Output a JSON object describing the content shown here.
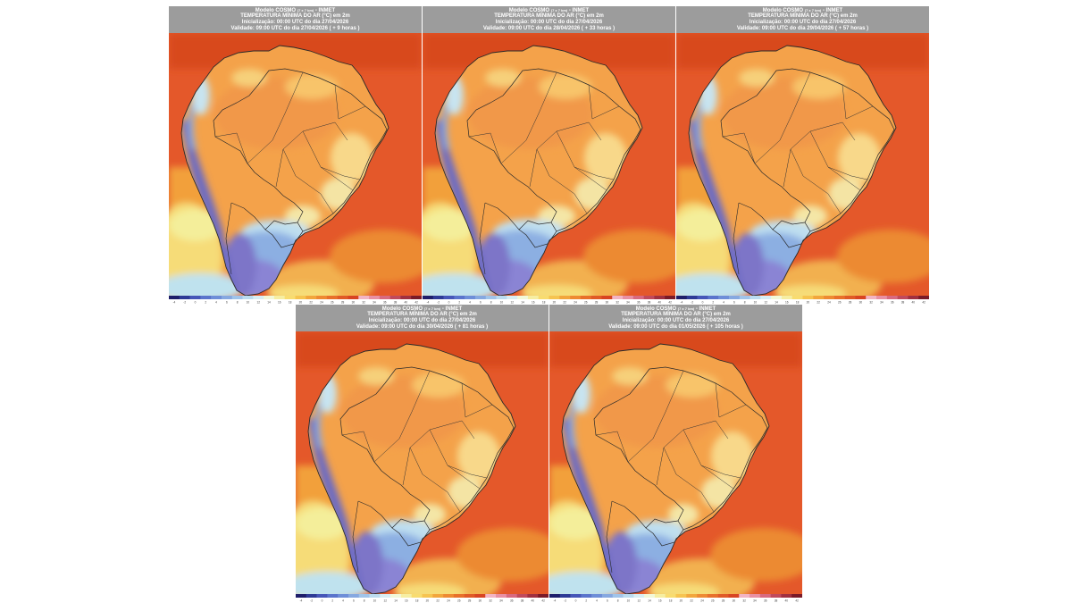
{
  "colorbar": {
    "colors": [
      "#1e1e6a",
      "#2e3a96",
      "#4656b8",
      "#5a74cc",
      "#6e8ed8",
      "#86a8e0",
      "#a0c4ea",
      "#bcdcf0",
      "#d8eef4",
      "#f2f8d8",
      "#f6eea2",
      "#f8dc70",
      "#f6c450",
      "#f2a63c",
      "#ee8a32",
      "#e8702a",
      "#e05a26",
      "#d84422",
      "#f2b4c4",
      "#e890a4",
      "#d86a80",
      "#c04a5c",
      "#a03040",
      "#7a1a28"
    ],
    "ticks": [
      "-4",
      "-2",
      "0",
      "2",
      "4",
      "6",
      "8",
      "10",
      "12",
      "14",
      "16",
      "18",
      "20",
      "22",
      "24",
      "26",
      "28",
      "30",
      "32",
      "34",
      "36",
      "38",
      "40",
      "42"
    ]
  },
  "panels": [
    {
      "title": "Modelo COSMO",
      "title_small": "(7 x 7 km)",
      "title_suffix": "- INMET",
      "variable": "TEMPERATURA MÍNIMA DO AR (°C) em 2m",
      "init": "Inicialização: 00:00 UTC do dia 27/04/2026",
      "valid": "Validade: 09:00 UTC do dia 27/04/2026 ( + 9 horas )",
      "coldness": 1.0
    },
    {
      "title": "Modelo COSMO",
      "title_small": "(7 x 7 km)",
      "title_suffix": "- INMET",
      "variable": "TEMPERATURA MÍNIMA DO AR (°C) em 2m",
      "init": "Inicialização: 00:00 UTC do dia 27/04/2026",
      "valid": "Validade: 09:00 UTC do dia 28/04/2026 ( + 33 horas )",
      "coldness": 1.05
    },
    {
      "title": "Modelo COSMO",
      "title_small": "(7 x 7 km)",
      "title_suffix": "- INMET",
      "variable": "TEMPERATURA MÍNIMA DO AR (°C) em 2m",
      "init": "Inicialização: 00:00 UTC do dia 27/04/2026",
      "valid": "Validade: 09:00 UTC do dia 29/04/2026 ( + 57 horas )",
      "coldness": 0.95
    },
    {
      "title": "Modelo COSMO",
      "title_small": "(7 x 7 km)",
      "title_suffix": "- INMET",
      "variable": "TEMPERATURA MÍNIMA DO AR (°C) em 2m",
      "init": "Inicialização: 00:00 UTC do dia 27/04/2026",
      "valid": "Validade: 09:00 UTC do dia 30/04/2026 ( + 81 horas )",
      "coldness": 0.9
    },
    {
      "title": "Modelo COSMO",
      "title_small": "(7 x 7 km)",
      "title_suffix": "- INMET",
      "variable": "TEMPERATURA MÍNIMA DO AR (°C) em 2m",
      "init": "Inicialização: 00:00 UTC do dia 27/04/2026",
      "valid": "Validade: 09:00 UTC do dia 01/05/2026 ( + 105 horas )",
      "coldness": 0.85
    }
  ]
}
